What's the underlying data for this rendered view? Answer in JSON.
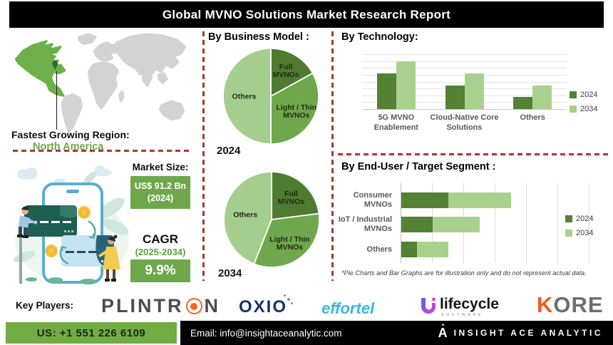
{
  "title": "Global MVNO Solutions Market Research Report",
  "colors": {
    "accent_green": "#6fa84c",
    "pie_dark_green": "#4e7b30",
    "pie_mid_green": "#6fa84c",
    "pie_light_green": "#a5cd8d",
    "bar_2024": "#548235",
    "bar_2034": "#a9d18e",
    "dash_red": "#a83734",
    "footer_green": "#72ad44",
    "map_gray": "#d3d3d3",
    "map_highlight_green": "#6db04b"
  },
  "map_section": {
    "label": "Fastest Growing Region:",
    "region": "North America"
  },
  "market_size": {
    "label": "Market Size:",
    "value": "US$ 91.2 Bn",
    "value_year": "(2024)",
    "cagr_label": "CAGR",
    "cagr_period": "(2025-2034)",
    "cagr_value": "9.9%"
  },
  "business_model": {
    "heading": "By Business Model :"
  },
  "technology": {
    "heading": "By Technology:"
  },
  "end_user": {
    "heading": "By End-User / Target Segment :"
  },
  "footnote": "*Pie Charts and Bar Graphs are for illustration only and do not represent actual data.",
  "key_players": {
    "label": "Key Players:",
    "players": [
      "PLINTRON",
      "OXIO",
      "effortel",
      "lifecycle",
      "KORE"
    ],
    "lifecycle_sub": "SOFTWARE"
  },
  "footer": {
    "phone": "US: +1 551 226 6109",
    "email": "Email: info@insightaceanalytic.com",
    "brand_icon_letter": "A",
    "brand": "INSIGHT ACE ANALYTIC"
  },
  "chart_data": [
    {
      "type": "pie",
      "year": "2024",
      "group": "By Business Model",
      "slices": [
        {
          "label": "Full MVNOs",
          "lines": [
            "Full",
            "MVNOs"
          ],
          "pct": 17,
          "color": "#4e7b30"
        },
        {
          "label": "Light / Thin MVNOs",
          "lines": [
            "Light / Thin",
            "MVNOs"
          ],
          "pct": 33,
          "color": "#6fa84c"
        },
        {
          "label": "Others",
          "lines": [
            "Others"
          ],
          "pct": 50,
          "color": "#a5cd8d"
        }
      ],
      "note": "illustration only per footnote"
    },
    {
      "type": "pie",
      "year": "2034",
      "group": "By Business Model",
      "slices": [
        {
          "label": "Full MVNOs",
          "lines": [
            "Full",
            "MVNOs"
          ],
          "pct": 23,
          "color": "#4e7b30"
        },
        {
          "label": "Light / Thin MVNOs",
          "lines": [
            "Light / Thin",
            "MVNOs"
          ],
          "pct": 33,
          "color": "#6fa84c"
        },
        {
          "label": "Others",
          "lines": [
            "Others"
          ],
          "pct": 44,
          "color": "#a5cd8d"
        }
      ],
      "note": "illustration only per footnote"
    },
    {
      "type": "bar",
      "title": "By Technology:",
      "categories": [
        "5G MVNO Enablement",
        "Cloud-Native Core Solutions",
        "Others"
      ],
      "series": [
        {
          "name": "2024",
          "color": "#548235",
          "values": [
            3,
            2,
            1
          ]
        },
        {
          "name": "2034",
          "color": "#a9d18e",
          "values": [
            4,
            3,
            2
          ]
        }
      ],
      "ylim": [
        0,
        4.6
      ],
      "grid": true,
      "legend_position": "right",
      "note": "no numeric axis labels shown; relative illustrative values"
    },
    {
      "type": "bar-horizontal-stacked",
      "title": "By End-User / Target Segment :",
      "categories": [
        "Consumer MVNOs",
        "IoT / Industrial MVNOs",
        "Others"
      ],
      "series": [
        {
          "name": "2024",
          "color": "#548235",
          "values": [
            1.5,
            1.0,
            0.5
          ]
        },
        {
          "name": "2034",
          "color": "#a9d18e",
          "values": [
            2.0,
            1.5,
            1.0
          ]
        }
      ],
      "xlim": [
        0,
        6
      ],
      "grid": true,
      "legend_position": "right",
      "note": "no numeric axis labels shown; relative illustrative values"
    }
  ]
}
